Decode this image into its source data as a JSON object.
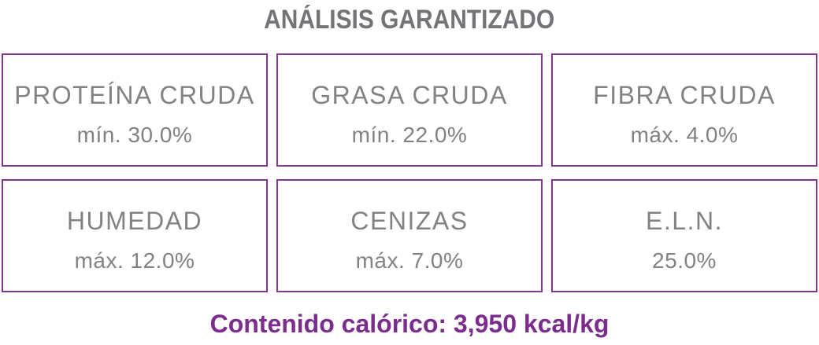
{
  "title": "ANÁLISIS GARANTIZADO",
  "colors": {
    "border_purple": "#82378F",
    "text_gray": "#818285",
    "title_gray": "#737477",
    "accent_purple": "#7B2C8D",
    "page_bg": "#FFFFFF"
  },
  "analysis": {
    "cells": [
      {
        "label": "PROTEÍNA CRUDA",
        "value": "mín. 30.0%"
      },
      {
        "label": "GRASA CRUDA",
        "value": "mín. 22.0%"
      },
      {
        "label": "FIBRA CRUDA",
        "value": "máx. 4.0%"
      },
      {
        "label": "HUMEDAD",
        "value": "máx. 12.0%"
      },
      {
        "label": "CENIZAS",
        "value": "máx. 7.0%"
      },
      {
        "label": "E.L.N.",
        "value": "25.0%"
      }
    ]
  },
  "footer": {
    "caloric_content": "Contenido calórico: 3,950 kcal/kg"
  }
}
